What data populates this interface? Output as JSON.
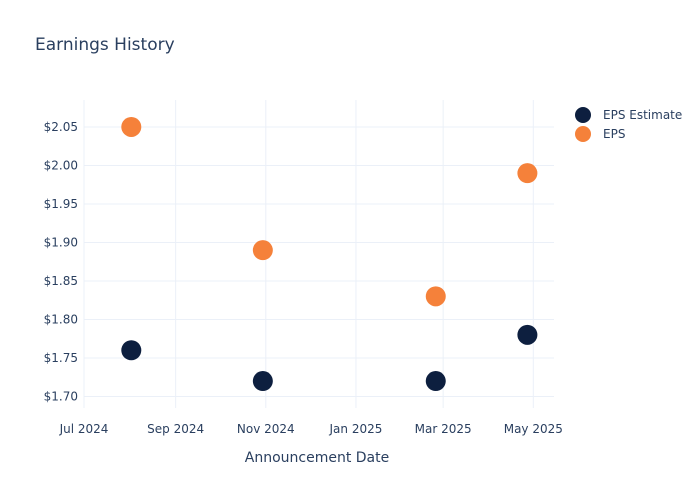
{
  "chart_data": {
    "type": "scatter",
    "title": "Earnings History",
    "xlabel": "Announcement Date",
    "ylabel": "",
    "x_ticks": [
      "Jul 2024",
      "Sep 2024",
      "Nov 2024",
      "Jan 2025",
      "Mar 2025",
      "May 2025"
    ],
    "y_ticks": [
      "$1.70",
      "$1.75",
      "$1.80",
      "$1.85",
      "$1.90",
      "$1.95",
      "$2.00",
      "$2.05"
    ],
    "xlim": [
      "2024-07-01",
      "2025-05-15"
    ],
    "ylim": [
      1.685,
      2.085
    ],
    "grid": true,
    "legend_position": "top-right",
    "series": [
      {
        "name": "EPS Estimate",
        "color": "#0d1f3f",
        "points": [
          {
            "x": "2024-08-02",
            "y": 1.76
          },
          {
            "x": "2024-10-30",
            "y": 1.72
          },
          {
            "x": "2025-02-24",
            "y": 1.72
          },
          {
            "x": "2025-04-27",
            "y": 1.78
          }
        ]
      },
      {
        "name": "EPS",
        "color": "#f5813a",
        "points": [
          {
            "x": "2024-08-02",
            "y": 2.05
          },
          {
            "x": "2024-10-30",
            "y": 1.89
          },
          {
            "x": "2025-02-24",
            "y": 1.83
          },
          {
            "x": "2025-04-27",
            "y": 1.99
          }
        ]
      }
    ]
  }
}
